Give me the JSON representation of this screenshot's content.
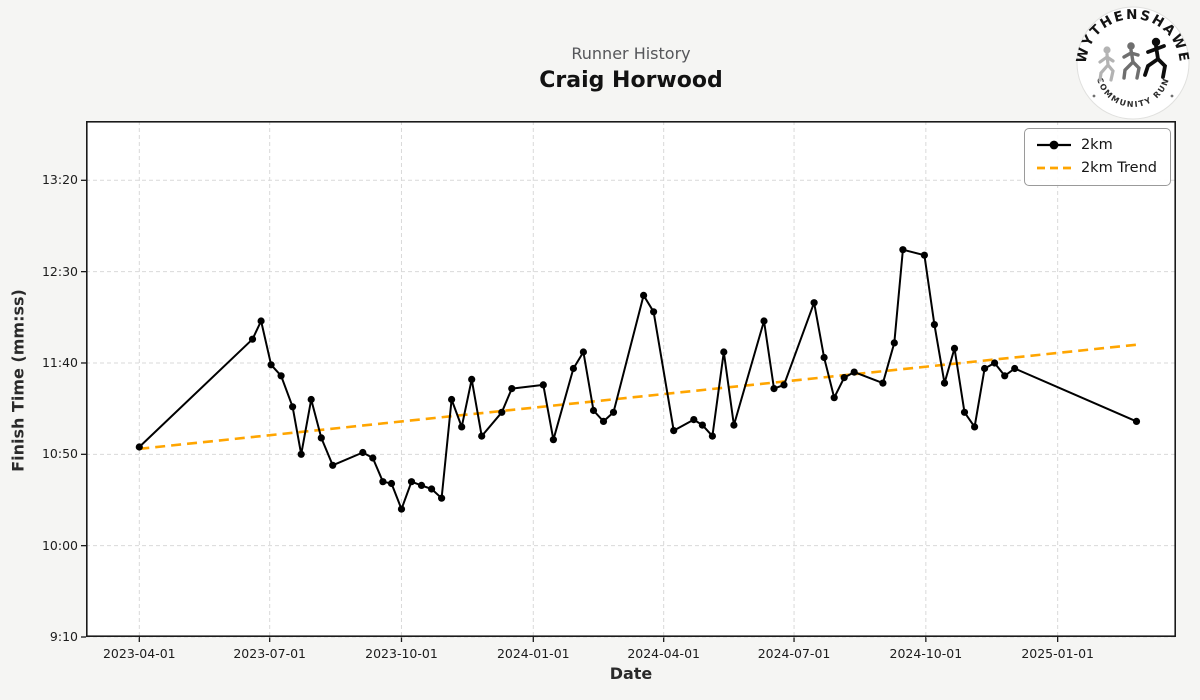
{
  "header": {
    "subtitle": "Runner History",
    "title": "Craig Horwood"
  },
  "logo": {
    "top_text": "WYTHENSHAWE",
    "bottom_text": "COMMUNITY RUN"
  },
  "legend": {
    "items": [
      {
        "label": "2km"
      },
      {
        "label": "2km Trend"
      }
    ]
  },
  "axes": {
    "xlabel": "Date",
    "ylabel": "Finish Time (mm:ss)"
  },
  "colors": {
    "series": "#000000",
    "trend": "#FFA500",
    "grid": "#d9d9d9",
    "spine": "#1a1a1a"
  },
  "chart_data": {
    "type": "line",
    "title": "Runner History",
    "subtitle": "Craig Horwood",
    "xlabel": "Date",
    "ylabel": "Finish Time (mm:ss)",
    "legend_position": "upper right",
    "grid": "dashed",
    "x_ticks": [
      "2023-04-01",
      "2023-07-01",
      "2023-10-01",
      "2024-01-01",
      "2024-04-01",
      "2024-07-01",
      "2024-10-01",
      "2025-01-01"
    ],
    "y_ticks": [
      {
        "label": "9:10",
        "seconds": 550
      },
      {
        "label": "10:00",
        "seconds": 600
      },
      {
        "label": "10:50",
        "seconds": 650
      },
      {
        "label": "11:40",
        "seconds": 700
      },
      {
        "label": "12:30",
        "seconds": 750
      },
      {
        "label": "13:20",
        "seconds": 800
      }
    ],
    "series": [
      {
        "name": "2km",
        "color": "#000000",
        "points": [
          {
            "date": "2023-04-01",
            "time": "10:54"
          },
          {
            "date": "2023-06-19",
            "time": "11:53"
          },
          {
            "date": "2023-06-25",
            "time": "12:03"
          },
          {
            "date": "2023-07-02",
            "time": "11:39"
          },
          {
            "date": "2023-07-09",
            "time": "11:33"
          },
          {
            "date": "2023-07-17",
            "time": "11:16"
          },
          {
            "date": "2023-07-23",
            "time": "10:50"
          },
          {
            "date": "2023-07-30",
            "time": "11:20"
          },
          {
            "date": "2023-08-06",
            "time": "10:59"
          },
          {
            "date": "2023-08-14",
            "time": "10:44"
          },
          {
            "date": "2023-09-04",
            "time": "10:51"
          },
          {
            "date": "2023-09-11",
            "time": "10:48"
          },
          {
            "date": "2023-09-18",
            "time": "10:35"
          },
          {
            "date": "2023-09-24",
            "time": "10:34"
          },
          {
            "date": "2023-10-01",
            "time": "10:20"
          },
          {
            "date": "2023-10-08",
            "time": "10:35"
          },
          {
            "date": "2023-10-15",
            "time": "10:33"
          },
          {
            "date": "2023-10-22",
            "time": "10:31"
          },
          {
            "date": "2023-10-29",
            "time": "10:26"
          },
          {
            "date": "2023-11-05",
            "time": "11:20"
          },
          {
            "date": "2023-11-12",
            "time": "11:05"
          },
          {
            "date": "2023-11-19",
            "time": "11:31"
          },
          {
            "date": "2023-11-26",
            "time": "11:00"
          },
          {
            "date": "2023-12-10",
            "time": "11:13"
          },
          {
            "date": "2023-12-17",
            "time": "11:26"
          },
          {
            "date": "2024-01-08",
            "time": "11:28"
          },
          {
            "date": "2024-01-15",
            "time": "10:58"
          },
          {
            "date": "2024-01-29",
            "time": "11:37"
          },
          {
            "date": "2024-02-05",
            "time": "11:46"
          },
          {
            "date": "2024-02-12",
            "time": "11:14"
          },
          {
            "date": "2024-02-19",
            "time": "11:08"
          },
          {
            "date": "2024-02-26",
            "time": "11:13"
          },
          {
            "date": "2024-03-18",
            "time": "12:17"
          },
          {
            "date": "2024-03-25",
            "time": "12:08"
          },
          {
            "date": "2024-04-08",
            "time": "11:03"
          },
          {
            "date": "2024-04-22",
            "time": "11:09"
          },
          {
            "date": "2024-04-28",
            "time": "11:06"
          },
          {
            "date": "2024-05-05",
            "time": "11:00"
          },
          {
            "date": "2024-05-13",
            "time": "11:46"
          },
          {
            "date": "2024-05-20",
            "time": "11:06"
          },
          {
            "date": "2024-06-10",
            "time": "12:03"
          },
          {
            "date": "2024-06-17",
            "time": "11:26"
          },
          {
            "date": "2024-06-24",
            "time": "11:28"
          },
          {
            "date": "2024-07-15",
            "time": "12:13"
          },
          {
            "date": "2024-07-22",
            "time": "11:43"
          },
          {
            "date": "2024-07-29",
            "time": "11:21"
          },
          {
            "date": "2024-08-05",
            "time": "11:32"
          },
          {
            "date": "2024-08-12",
            "time": "11:35"
          },
          {
            "date": "2024-09-01",
            "time": "11:29"
          },
          {
            "date": "2024-09-09",
            "time": "11:51"
          },
          {
            "date": "2024-09-15",
            "time": "12:42"
          },
          {
            "date": "2024-09-30",
            "time": "12:39"
          },
          {
            "date": "2024-10-07",
            "time": "12:01"
          },
          {
            "date": "2024-10-14",
            "time": "11:29"
          },
          {
            "date": "2024-10-21",
            "time": "11:48"
          },
          {
            "date": "2024-10-28",
            "time": "11:13"
          },
          {
            "date": "2024-11-04",
            "time": "11:05"
          },
          {
            "date": "2024-11-11",
            "time": "11:37"
          },
          {
            "date": "2024-11-18",
            "time": "11:40"
          },
          {
            "date": "2024-11-25",
            "time": "11:33"
          },
          {
            "date": "2024-12-02",
            "time": "11:37"
          },
          {
            "date": "2025-02-25",
            "time": "11:08"
          }
        ]
      }
    ],
    "trend": {
      "name": "2km Trend",
      "color": "#FFA500",
      "style": "dashed",
      "points": [
        {
          "date": "2023-04-01",
          "time": "10:53"
        },
        {
          "date": "2025-02-25",
          "time": "11:50"
        }
      ]
    }
  }
}
